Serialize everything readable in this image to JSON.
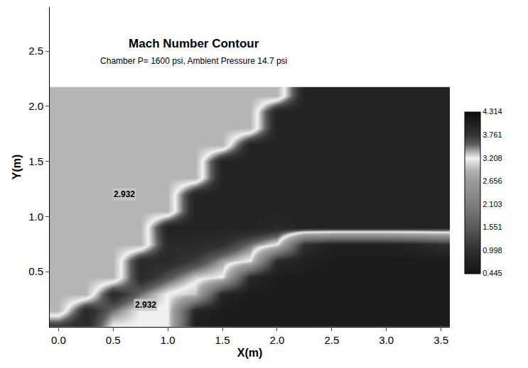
{
  "chart_data": {
    "type": "heatmap",
    "title": "Mach Number Contour",
    "subtitle": "Chamber P= 1600 psi, Ambient Pressure 14.7 psi",
    "x_label": "X(m)",
    "y_label": "Y(m)",
    "xlim": [
      -0.08,
      3.58
    ],
    "ylim": [
      0,
      2.9
    ],
    "xticks": [
      {
        "value": 0,
        "label": "0.0"
      },
      0.5,
      {
        "value": 1,
        "label": "1.0"
      },
      1.5,
      {
        "value": 2,
        "label": "2.0"
      },
      2.5,
      {
        "value": 3,
        "label": "3.0"
      },
      3.5
    ],
    "yticks": [
      0.5,
      {
        "value": 1,
        "label": "1.0"
      },
      1.5,
      {
        "value": 2,
        "label": "2.0"
      },
      2.5
    ],
    "x": [
      0,
      0.25,
      0.5,
      0.75,
      1.0,
      1.25,
      1.5,
      1.75,
      2.0,
      2.25,
      2.5,
      2.75,
      3.0,
      3.25,
      3.5
    ],
    "y": [
      0,
      0.15,
      0.3,
      0.45,
      0.6,
      0.75,
      0.9,
      1.05,
      1.2,
      1.35,
      1.5,
      1.65,
      1.8,
      1.95,
      2.1
    ],
    "z": [
      [
        3.8,
        3.9,
        3.2,
        3.2,
        3.2,
        0.6,
        0.6,
        0.6,
        0.6,
        0.6,
        0.6,
        0.6,
        0.6,
        0.6,
        0.6
      ],
      [
        2.93,
        3.9,
        3.5,
        3.2,
        3.2,
        0.8,
        0.6,
        0.6,
        0.6,
        0.6,
        0.6,
        0.6,
        0.6,
        0.6,
        0.6
      ],
      [
        2.93,
        2.93,
        3.9,
        3.5,
        3.2,
        3.0,
        0.8,
        0.6,
        0.6,
        0.6,
        0.6,
        0.6,
        0.6,
        0.6,
        0.6
      ],
      [
        2.93,
        2.93,
        2.93,
        3.9,
        3.6,
        3.3,
        3.2,
        0.9,
        0.6,
        0.6,
        0.6,
        0.6,
        0.6,
        0.6,
        0.6
      ],
      [
        2.93,
        2.93,
        2.93,
        3.9,
        3.9,
        3.7,
        3.4,
        3.2,
        0.9,
        0.7,
        0.6,
        0.6,
        0.6,
        0.6,
        0.6
      ],
      [
        2.93,
        2.93,
        2.93,
        2.93,
        3.9,
        3.9,
        3.8,
        3.5,
        3.2,
        1.0,
        0.7,
        0.7,
        0.7,
        0.8,
        1.0
      ],
      [
        2.93,
        2.93,
        2.93,
        2.93,
        4.0,
        4.0,
        4.0,
        4.0,
        3.9,
        4.0,
        4.0,
        4.0,
        4.0,
        4.0,
        4.0
      ],
      [
        2.93,
        2.93,
        2.93,
        2.93,
        2.93,
        4.0,
        4.0,
        4.0,
        4.0,
        4.0,
        4.0,
        4.0,
        4.0,
        4.0,
        4.0
      ],
      [
        2.93,
        2.93,
        2.93,
        2.93,
        2.93,
        4.0,
        4.0,
        4.0,
        4.0,
        4.0,
        4.0,
        4.0,
        4.0,
        4.0,
        4.0
      ],
      [
        2.93,
        2.93,
        2.93,
        2.93,
        2.93,
        2.93,
        4.0,
        4.0,
        4.0,
        4.0,
        4.0,
        4.0,
        4.0,
        4.0,
        4.0
      ],
      [
        2.93,
        2.93,
        2.93,
        2.93,
        2.93,
        2.93,
        4.0,
        4.0,
        4.0,
        4.0,
        4.0,
        4.0,
        4.0,
        4.0,
        4.0
      ],
      [
        2.93,
        2.93,
        2.93,
        2.93,
        2.93,
        2.93,
        2.93,
        4.0,
        4.0,
        4.0,
        4.0,
        4.0,
        4.0,
        4.0,
        4.0
      ],
      [
        2.93,
        2.93,
        2.93,
        2.93,
        2.93,
        2.93,
        2.93,
        2.93,
        4.0,
        4.0,
        4.0,
        4.0,
        4.0,
        4.0,
        4.0
      ],
      [
        2.93,
        2.93,
        2.93,
        2.93,
        2.93,
        2.93,
        2.93,
        2.93,
        4.0,
        4.0,
        4.0,
        4.0,
        4.0,
        4.0,
        4.0
      ],
      [
        2.93,
        2.93,
        2.93,
        2.93,
        2.93,
        2.93,
        2.93,
        2.93,
        2.93,
        4.0,
        4.0,
        4.0,
        4.0,
        4.0,
        4.0
      ]
    ],
    "zlim": [
      0.445,
      4.314
    ],
    "zticks": [
      0.445,
      0.998,
      1.551,
      2.103,
      2.656,
      3.208,
      3.761,
      4.314
    ],
    "annotations": [
      {
        "text": "2.932",
        "x": 0.6,
        "y": 1.2
      },
      {
        "text": "2.932",
        "x": 0.8,
        "y": 0.2
      }
    ]
  }
}
